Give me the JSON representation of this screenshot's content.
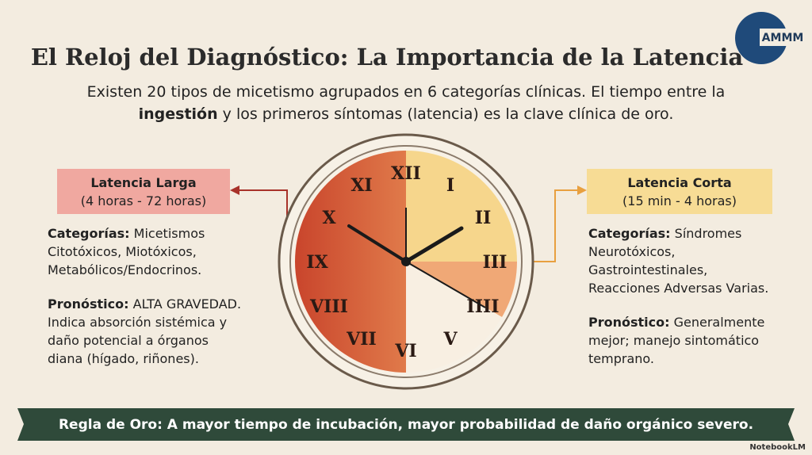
{
  "header": {
    "title": "El Reloj del Diagnóstico: La Importancia de la Latencia",
    "subtitle_line1": "Existen 20 tipos de micetismo agrupados en 6 categorías clínicas. El tiempo entre la",
    "subtitle_bold": "ingestión",
    "subtitle_line2": " y los primeros síntomas (latencia) es la clave clínica de oro.",
    "logo": "AMMM"
  },
  "left": {
    "box_title": "Latencia Larga",
    "box_range": "(4 horas - 72 horas)",
    "cat_label": "Categorías:",
    "cat_text": [
      " Micetismos",
      "Citotóxicos, Miotóxicos,",
      "Metabólicos/Endocrinos."
    ],
    "prog_label": "Pronóstico:",
    "prog_text": [
      " ALTA GRAVEDAD.",
      "Indica absorción sistémica y",
      "daño potencial a órganos",
      "diana (hígado, riñones)."
    ]
  },
  "right": {
    "box_title": "Latencia Corta",
    "box_range": "(15 min - 4 horas)",
    "cat_label": "Categorías:",
    "cat_text": [
      " Síndromes",
      "Neurotóxicos,",
      "Gastrointestinales,",
      "Reacciones Adversas Varias."
    ],
    "prog_label": "Pronóstico:",
    "prog_text": [
      " Generalmente",
      "mejor; manejo sintomático",
      "temprano."
    ]
  },
  "clock": {
    "numerals": [
      "XII",
      "I",
      "II",
      "III",
      "IIII",
      "V",
      "VI",
      "VII",
      "VIII",
      "IX",
      "X",
      "XI"
    ]
  },
  "footer": {
    "banner": "Regla de Oro: A mayor tiempo de incubación, mayor probabilidad de daño orgánico severo.",
    "brand": "NotebookLM"
  }
}
